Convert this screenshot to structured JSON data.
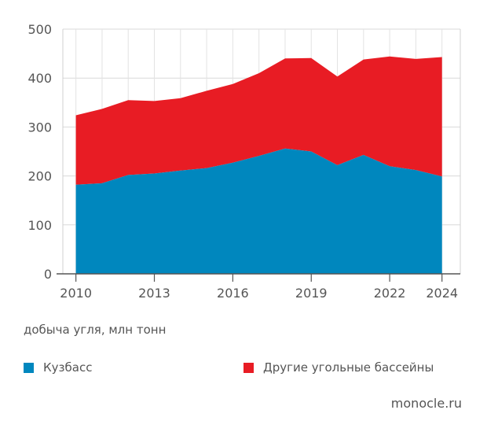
{
  "chart_data": {
    "type": "area",
    "stacked": true,
    "x": [
      2010,
      2011,
      2012,
      2013,
      2014,
      2015,
      2016,
      2017,
      2018,
      2019,
      2020,
      2021,
      2022,
      2023,
      2024
    ],
    "series": [
      {
        "name": "Кузбасс",
        "color": "#0087be",
        "values": [
          182,
          185,
          202,
          205,
          211,
          216,
          227,
          241,
          256,
          250,
          222,
          243,
          220,
          212,
          199
        ]
      },
      {
        "name": "Другие угольные бассейны",
        "color": "#e81c24",
        "values": [
          142,
          152,
          153,
          148,
          148,
          158,
          161,
          169,
          184,
          191,
          181,
          195,
          224,
          227,
          244
        ]
      }
    ],
    "ylim": [
      0,
      500
    ],
    "yticks": [
      0,
      100,
      200,
      300,
      400,
      500
    ],
    "xticks": [
      2010,
      2013,
      2016,
      2019,
      2022,
      2024
    ],
    "grid": true,
    "legend": "bottom",
    "ylabel": "добыча угля, млн тонн",
    "xlabel": ""
  },
  "source": "monocle.ru"
}
